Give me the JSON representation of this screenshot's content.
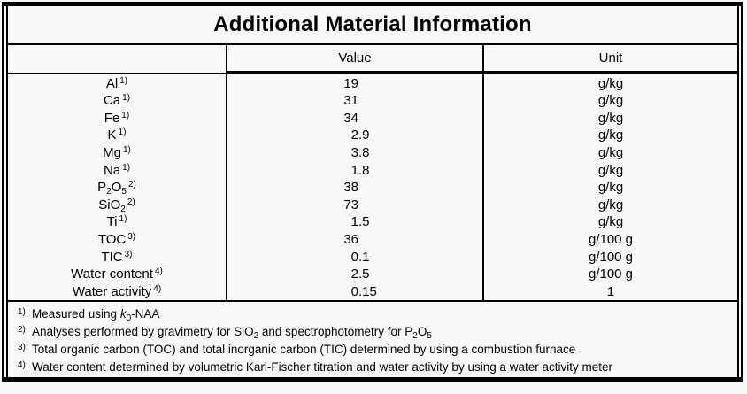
{
  "table": {
    "title": "Additional Material Information",
    "columns": {
      "empty": "",
      "value": "Value",
      "unit": "Unit"
    },
    "rows": [
      {
        "label": [
          [
            "t",
            "Al"
          ]
        ],
        "fn": "1)",
        "value": "19",
        "unit": "g/kg"
      },
      {
        "label": [
          [
            "t",
            "Ca"
          ]
        ],
        "fn": "1)",
        "value": "31",
        "unit": "g/kg"
      },
      {
        "label": [
          [
            "t",
            "Fe"
          ]
        ],
        "fn": "1)",
        "value": "34",
        "unit": "g/kg"
      },
      {
        "label": [
          [
            "t",
            "K"
          ]
        ],
        "fn": "1)",
        "value": "2.9",
        "unit": "g/kg"
      },
      {
        "label": [
          [
            "t",
            "Mg"
          ]
        ],
        "fn": "1)",
        "value": "3.8",
        "unit": "g/kg"
      },
      {
        "label": [
          [
            "t",
            "Na"
          ]
        ],
        "fn": "1)",
        "value": "1.8",
        "unit": "g/kg"
      },
      {
        "label": [
          [
            "t",
            "P"
          ],
          [
            "sub",
            "2"
          ],
          [
            "t",
            "O"
          ],
          [
            "sub",
            "5"
          ]
        ],
        "fn": "2)",
        "value": "38",
        "unit": "g/kg"
      },
      {
        "label": [
          [
            "t",
            "SiO"
          ],
          [
            "sub",
            "2"
          ]
        ],
        "fn": "2)",
        "value": "73",
        "unit": "g/kg"
      },
      {
        "label": [
          [
            "t",
            "Ti"
          ]
        ],
        "fn": "1)",
        "value": "1.5",
        "unit": "g/kg"
      },
      {
        "label": [
          [
            "t",
            "TOC"
          ]
        ],
        "fn": "3)",
        "value": "36",
        "unit": "g/100 g"
      },
      {
        "label": [
          [
            "t",
            "TIC"
          ]
        ],
        "fn": "3)",
        "value": "0.1",
        "unit": "g/100 g"
      },
      {
        "label": [
          [
            "t",
            "Water content"
          ]
        ],
        "fn": "4)",
        "value": "2.5",
        "unit": "g/100 g"
      },
      {
        "label": [
          [
            "t",
            "Water activity"
          ]
        ],
        "fn": "4)",
        "value": "0.15",
        "unit": "1"
      }
    ],
    "footnotes": [
      {
        "marker": "1)",
        "segments": [
          [
            "t",
            "Measured using "
          ],
          [
            "i",
            "k"
          ],
          [
            "sub",
            "0"
          ],
          [
            "t",
            "-NAA"
          ]
        ]
      },
      {
        "marker": "2)",
        "segments": [
          [
            "t",
            "Analyses performed by gravimetry for SiO"
          ],
          [
            "sub",
            "2"
          ],
          [
            "t",
            " and spectrophotometry for P"
          ],
          [
            "sub",
            "2"
          ],
          [
            "t",
            "O"
          ],
          [
            "sub",
            "5"
          ]
        ]
      },
      {
        "marker": "3)",
        "segments": [
          [
            "t",
            "Total organic carbon (TOC) and total inorganic carbon (TIC) determined by using a combustion furnace"
          ]
        ]
      },
      {
        "marker": "4)",
        "segments": [
          [
            "t",
            "Water content determined by volumetric Karl-Fischer titration and water activity by using a water activity meter"
          ]
        ]
      }
    ]
  },
  "colors": {
    "border": "#000000",
    "background": "#f8f8f8",
    "text": "#000000"
  }
}
